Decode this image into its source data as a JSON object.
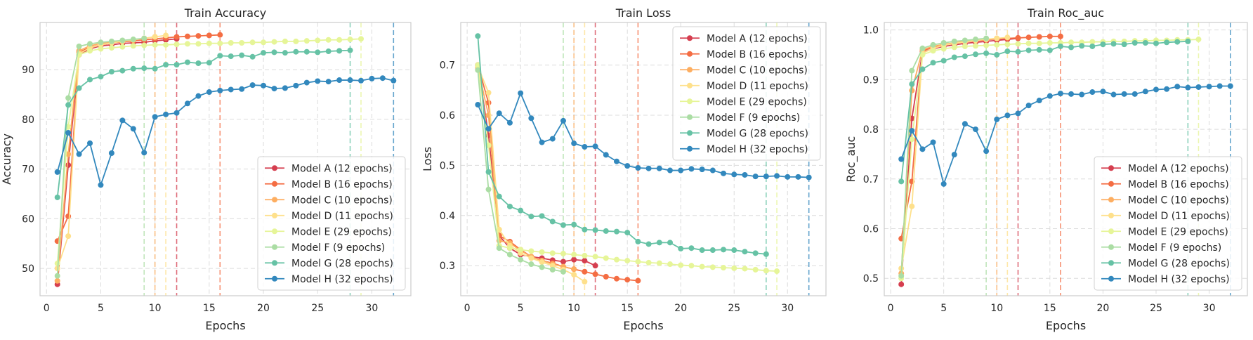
{
  "chart_data": [
    {
      "type": "line",
      "title": "Train Accuracy",
      "xlabel": "Epochs",
      "ylabel": "Accuracy",
      "xlim": [
        -0.6,
        33.6
      ],
      "ylim": [
        44.5,
        99.5
      ],
      "xticks": [
        0,
        5,
        10,
        15,
        20,
        25,
        30
      ],
      "yticks": [
        50,
        60,
        70,
        80,
        90
      ],
      "legend_position": "lower-right",
      "series": [
        {
          "name": "Model A (12 epochs)",
          "color": "#d53e4f",
          "end_epoch": 12,
          "values": [
            46.8,
            70.8,
            93.0,
            94.2,
            94.8,
            95.0,
            95.3,
            95.4,
            95.5,
            95.8,
            96.0,
            96.2
          ]
        },
        {
          "name": "Model B (16 epochs)",
          "color": "#f46d43",
          "end_epoch": 16,
          "values": [
            55.5,
            60.5,
            93.5,
            94.5,
            95.0,
            95.4,
            95.6,
            95.8,
            96.0,
            96.2,
            96.4,
            96.6,
            96.7,
            96.8,
            96.9,
            97.0
          ]
        },
        {
          "name": "Model C (10 epochs)",
          "color": "#fdae61",
          "end_epoch": 10,
          "values": [
            47.5,
            73.0,
            93.8,
            94.8,
            95.3,
            95.6,
            95.8,
            96.0,
            96.3,
            96.6
          ]
        },
        {
          "name": "Model D (11 epochs)",
          "color": "#fee08b",
          "end_epoch": 11,
          "values": [
            50.0,
            56.5,
            93.2,
            94.4,
            95.0,
            95.4,
            95.7,
            96.0,
            96.3,
            96.6,
            96.9
          ]
        },
        {
          "name": "Model E (29 epochs)",
          "color": "#e6f598",
          "end_epoch": 29,
          "values": [
            51.0,
            78.5,
            93.0,
            93.8,
            94.2,
            94.4,
            94.6,
            94.8,
            94.9,
            95.0,
            95.0,
            95.1,
            95.2,
            95.2,
            95.3,
            95.3,
            95.4,
            95.4,
            95.5,
            95.5,
            95.6,
            95.7,
            95.7,
            95.8,
            95.9,
            96.0,
            96.0,
            96.1,
            96.2
          ]
        },
        {
          "name": "Model F (9 epochs)",
          "color": "#abdda4",
          "end_epoch": 9,
          "values": [
            48.5,
            84.3,
            94.7,
            95.2,
            95.5,
            95.7,
            95.9,
            96.1,
            96.3
          ]
        },
        {
          "name": "Model G (28 epochs)",
          "color": "#66c2a5",
          "end_epoch": 28,
          "values": [
            64.3,
            82.9,
            86.3,
            88.0,
            88.6,
            89.6,
            89.8,
            90.2,
            90.3,
            90.2,
            91.0,
            91.0,
            91.5,
            91.3,
            91.4,
            92.8,
            92.7,
            92.9,
            92.6,
            93.4,
            93.5,
            93.4,
            93.6,
            93.6,
            93.5,
            93.7,
            93.8,
            93.9
          ]
        },
        {
          "name": "Model H (32 epochs)",
          "color": "#3288bd",
          "end_epoch": 32,
          "values": [
            69.4,
            77.3,
            73.0,
            75.2,
            66.8,
            73.2,
            79.8,
            78.1,
            73.3,
            80.5,
            81.0,
            81.3,
            83.2,
            84.7,
            85.5,
            85.8,
            86.0,
            86.1,
            86.9,
            86.8,
            86.2,
            86.3,
            86.8,
            87.4,
            87.7,
            87.6,
            87.9,
            87.9,
            87.8,
            88.2,
            88.3,
            87.8
          ]
        }
      ]
    },
    {
      "type": "line",
      "title": "Train Loss",
      "xlabel": "Epochs",
      "ylabel": "Loss",
      "xlim": [
        -0.6,
        33.6
      ],
      "ylim": [
        0.24,
        0.785
      ],
      "xticks": [
        0,
        5,
        10,
        15,
        20,
        25,
        30
      ],
      "yticks": [
        0.3,
        0.4,
        0.5,
        0.6,
        0.7
      ],
      "legend_position": "upper-right",
      "series": [
        {
          "name": "Model A (12 epochs)",
          "color": "#d53e4f",
          "end_epoch": 12,
          "values": [
            0.7,
            0.56,
            0.36,
            0.335,
            0.322,
            0.318,
            0.315,
            0.311,
            0.308,
            0.312,
            0.31,
            0.3
          ]
        },
        {
          "name": "Model B (16 epochs)",
          "color": "#f46d43",
          "end_epoch": 16,
          "values": [
            0.7,
            0.625,
            0.36,
            0.348,
            0.332,
            0.318,
            0.31,
            0.305,
            0.298,
            0.293,
            0.288,
            0.283,
            0.278,
            0.274,
            0.272,
            0.27
          ]
        },
        {
          "name": "Model C (10 epochs)",
          "color": "#fdae61",
          "end_epoch": 10,
          "values": [
            0.695,
            0.6,
            0.35,
            0.345,
            0.33,
            0.318,
            0.31,
            0.303,
            0.298,
            0.293
          ]
        },
        {
          "name": "Model D (11 epochs)",
          "color": "#fee08b",
          "end_epoch": 11,
          "values": [
            0.698,
            0.645,
            0.372,
            0.34,
            0.325,
            0.315,
            0.307,
            0.3,
            0.292,
            0.282,
            0.268
          ]
        },
        {
          "name": "Model E (29 epochs)",
          "color": "#e6f598",
          "end_epoch": 29,
          "values": [
            0.7,
            0.54,
            0.34,
            0.335,
            0.332,
            0.329,
            0.327,
            0.325,
            0.324,
            0.322,
            0.32,
            0.318,
            0.315,
            0.312,
            0.31,
            0.308,
            0.306,
            0.305,
            0.303,
            0.301,
            0.3,
            0.298,
            0.297,
            0.296,
            0.295,
            0.294,
            0.292,
            0.29,
            0.289
          ]
        },
        {
          "name": "Model F (9 epochs)",
          "color": "#abdda4",
          "end_epoch": 9,
          "values": [
            0.69,
            0.452,
            0.335,
            0.322,
            0.312,
            0.303,
            0.297,
            0.292,
            0.288
          ]
        },
        {
          "name": "Model G (28 epochs)",
          "color": "#66c2a5",
          "end_epoch": 28,
          "values": [
            0.758,
            0.487,
            0.438,
            0.418,
            0.41,
            0.398,
            0.399,
            0.388,
            0.381,
            0.382,
            0.372,
            0.371,
            0.369,
            0.368,
            0.366,
            0.348,
            0.343,
            0.346,
            0.346,
            0.334,
            0.335,
            0.331,
            0.331,
            0.332,
            0.331,
            0.328,
            0.325,
            0.323
          ]
        },
        {
          "name": "Model H (32 epochs)",
          "color": "#3288bd",
          "end_epoch": 32,
          "values": [
            0.621,
            0.573,
            0.604,
            0.585,
            0.644,
            0.594,
            0.546,
            0.553,
            0.589,
            0.544,
            0.537,
            0.538,
            0.521,
            0.508,
            0.499,
            0.495,
            0.494,
            0.494,
            0.49,
            0.49,
            0.493,
            0.492,
            0.49,
            0.484,
            0.482,
            0.481,
            0.478,
            0.478,
            0.479,
            0.477,
            0.477,
            0.476
          ]
        }
      ]
    },
    {
      "type": "line",
      "title": "Train Roc_auc",
      "xlabel": "Epochs",
      "ylabel": "Roc_auc",
      "xlim": [
        -0.6,
        33.6
      ],
      "ylim": [
        0.465,
        1.015
      ],
      "xticks": [
        0,
        5,
        10,
        15,
        20,
        25,
        30
      ],
      "yticks": [
        0.5,
        0.6,
        0.7,
        0.8,
        0.9,
        1.0
      ],
      "legend_position": "lower-right",
      "series": [
        {
          "name": "Model A (12 epochs)",
          "color": "#d53e4f",
          "end_epoch": 12,
          "values": [
            0.488,
            0.822,
            0.955,
            0.962,
            0.967,
            0.97,
            0.973,
            0.975,
            0.977,
            0.979,
            0.981,
            0.983
          ]
        },
        {
          "name": "Model B (16 epochs)",
          "color": "#f46d43",
          "end_epoch": 16,
          "values": [
            0.58,
            0.695,
            0.958,
            0.965,
            0.97,
            0.973,
            0.976,
            0.978,
            0.98,
            0.982,
            0.983,
            0.984,
            0.985,
            0.986,
            0.987,
            0.987
          ]
        },
        {
          "name": "Model C (10 epochs)",
          "color": "#fdae61",
          "end_epoch": 10,
          "values": [
            0.51,
            0.878,
            0.96,
            0.967,
            0.971,
            0.974,
            0.977,
            0.979,
            0.981,
            0.983
          ]
        },
        {
          "name": "Model D (11 epochs)",
          "color": "#fee08b",
          "end_epoch": 11,
          "values": [
            0.52,
            0.645,
            0.953,
            0.963,
            0.969,
            0.973,
            0.976,
            0.979,
            0.981,
            0.983,
            0.985
          ]
        },
        {
          "name": "Model E (29 epochs)",
          "color": "#e6f598",
          "end_epoch": 29,
          "values": [
            0.5,
            0.78,
            0.95,
            0.958,
            0.962,
            0.965,
            0.967,
            0.968,
            0.969,
            0.97,
            0.971,
            0.972,
            0.973,
            0.973,
            0.974,
            0.974,
            0.975,
            0.975,
            0.976,
            0.976,
            0.977,
            0.977,
            0.978,
            0.978,
            0.979,
            0.979,
            0.98,
            0.98,
            0.981
          ]
        },
        {
          "name": "Model F (9 epochs)",
          "color": "#abdda4",
          "end_epoch": 9,
          "values": [
            0.505,
            0.918,
            0.963,
            0.97,
            0.974,
            0.977,
            0.979,
            0.981,
            0.983
          ]
        },
        {
          "name": "Model G (28 epochs)",
          "color": "#66c2a5",
          "end_epoch": 28,
          "values": [
            0.695,
            0.891,
            0.921,
            0.934,
            0.938,
            0.945,
            0.947,
            0.951,
            0.953,
            0.95,
            0.957,
            0.956,
            0.959,
            0.96,
            0.959,
            0.967,
            0.965,
            0.968,
            0.967,
            0.971,
            0.972,
            0.971,
            0.974,
            0.974,
            0.973,
            0.975,
            0.976,
            0.977
          ]
        },
        {
          "name": "Model H (32 epochs)",
          "color": "#3288bd",
          "end_epoch": 32,
          "values": [
            0.74,
            0.797,
            0.76,
            0.774,
            0.69,
            0.749,
            0.811,
            0.8,
            0.756,
            0.82,
            0.828,
            0.832,
            0.848,
            0.858,
            0.867,
            0.872,
            0.871,
            0.87,
            0.875,
            0.876,
            0.87,
            0.871,
            0.871,
            0.876,
            0.88,
            0.881,
            0.886,
            0.884,
            0.885,
            0.886,
            0.887,
            0.887
          ]
        }
      ]
    }
  ]
}
